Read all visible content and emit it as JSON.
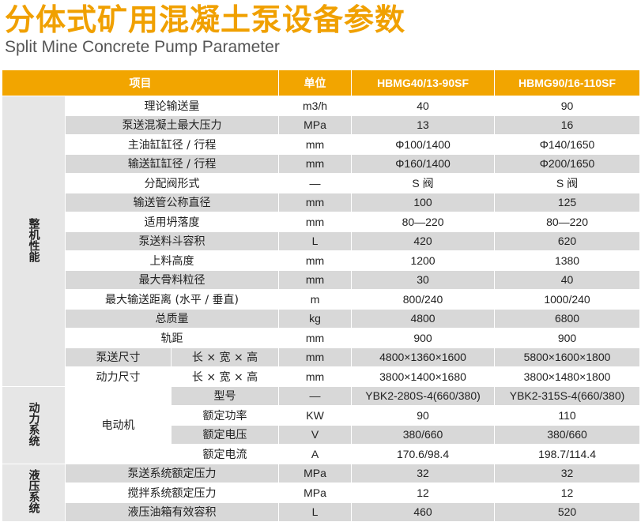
{
  "title_cn": "分体式矿用混凝土泵设备参数",
  "title_en": "Split Mine Concrete Pump Parameter",
  "header": {
    "item": "项目",
    "unit": "单位",
    "model_a": "HBMG40/13-90SF",
    "model_b": "HBMG90/16-110SF"
  },
  "groups": {
    "overall": "整机性能",
    "power": "动力系统",
    "hydraulic": "液压系统"
  },
  "overall_rows": [
    {
      "label": "理论输送量",
      "unit": "m3/h",
      "a": "40",
      "b": "90"
    },
    {
      "label": "泵送混凝土最大压力",
      "unit": "MPa",
      "a": "13",
      "b": "16"
    },
    {
      "label": "主油缸缸径 / 行程",
      "unit": "mm",
      "a": "Φ100/1400",
      "b": "Φ140/1650"
    },
    {
      "label": "输送缸缸径 / 行程",
      "unit": "mm",
      "a": "Φ160/1400",
      "b": "Φ200/1650"
    },
    {
      "label": "分配阀形式",
      "unit": "—",
      "a": "S 阀",
      "b": "S 阀"
    },
    {
      "label": "输送管公称直径",
      "unit": "mm",
      "a": "100",
      "b": "125"
    },
    {
      "label": "适用坍落度",
      "unit": "mm",
      "a": "80—220",
      "b": "80—220"
    },
    {
      "label": "泵送料斗容积",
      "unit": "L",
      "a": "420",
      "b": "620"
    },
    {
      "label": "上料高度",
      "unit": "mm",
      "a": "1200",
      "b": "1380"
    },
    {
      "label": "最大骨料粒径",
      "unit": "mm",
      "a": "30",
      "b": "40"
    },
    {
      "label": "最大输送距离 (水平 / 垂直)",
      "unit": "m",
      "a": "800/240",
      "b": "1000/240"
    },
    {
      "label": "总质量",
      "unit": "kg",
      "a": "4800",
      "b": "6800"
    },
    {
      "label": "轨距",
      "unit": "mm",
      "a": "900",
      "b": "900"
    }
  ],
  "size_rows": [
    {
      "label": "泵送尺寸",
      "sub": "长 × 宽 × 高",
      "unit": "mm",
      "a": "4800×1360×1600",
      "b": "5800×1600×1800"
    },
    {
      "label": "动力尺寸",
      "sub": "长 × 宽 × 高",
      "unit": "mm",
      "a": "3800×1400×1680",
      "b": "3800×1480×1800"
    }
  ],
  "motor_label": "电动机",
  "power_rows": [
    {
      "label": "型号",
      "unit": "—",
      "a": "YBK2-280S-4(660/380)",
      "b": "YBK2-315S-4(660/380)"
    },
    {
      "label": "额定功率",
      "unit": "KW",
      "a": "90",
      "b": "110"
    },
    {
      "label": "额定电压",
      "unit": "V",
      "a": "380/660",
      "b": "380/660"
    },
    {
      "label": "额定电流",
      "unit": "A",
      "a": "170.6/98.4",
      "b": "198.7/114.4"
    }
  ],
  "hydraulic_rows": [
    {
      "label": "泵送系统额定压力",
      "unit": "MPa",
      "a": "32",
      "b": "32"
    },
    {
      "label": "搅拌系统额定压力",
      "unit": "MPa",
      "a": "12",
      "b": "12"
    },
    {
      "label": "液压油箱有效容积",
      "unit": "L",
      "a": "460",
      "b": "520"
    }
  ]
}
